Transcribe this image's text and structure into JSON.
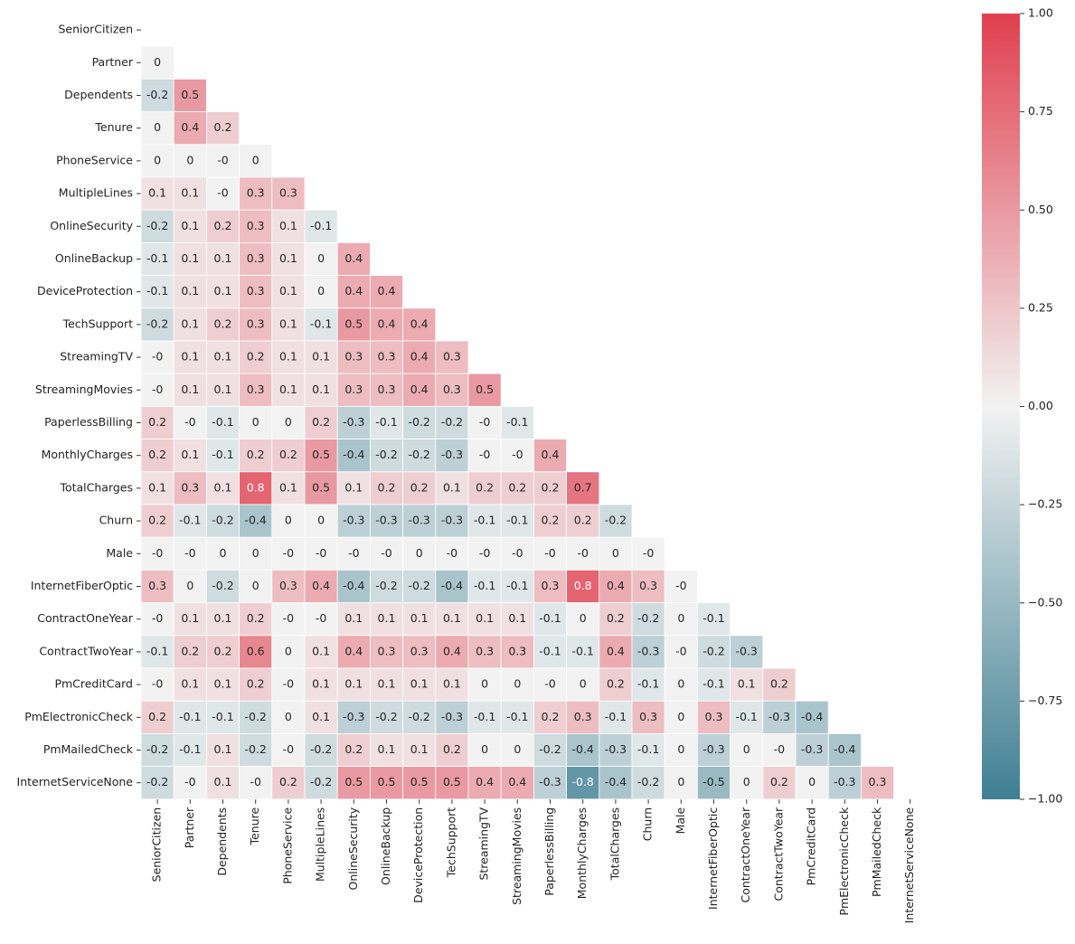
{
  "chart_data": {
    "type": "heatmap",
    "categories": [
      "SeniorCitizen",
      "Partner",
      "Dependents",
      "Tenure",
      "PhoneService",
      "MultipleLines",
      "OnlineSecurity",
      "OnlineBackup",
      "DeviceProtection",
      "TechSupport",
      "StreamingTV",
      "StreamingMovies",
      "PaperlessBilling",
      "MonthlyCharges",
      "TotalCharges",
      "Churn",
      "Male",
      "InternetFiberOptic",
      "ContractOneYear",
      "ContractTwoYear",
      "PmCreditCard",
      "PmElectronicCheck",
      "PmMailedCheck",
      "InternetServiceNone"
    ],
    "values": [
      [],
      [
        0
      ],
      [
        -0.2,
        0.5
      ],
      [
        0,
        0.4,
        0.2
      ],
      [
        0,
        0,
        0,
        0
      ],
      [
        0.1,
        0.1,
        0,
        0.3,
        0.3
      ],
      [
        -0.2,
        0.1,
        0.2,
        0.3,
        0.1,
        -0.1
      ],
      [
        -0.1,
        0.1,
        0.1,
        0.3,
        0.1,
        0,
        0.4
      ],
      [
        -0.1,
        0.1,
        0.1,
        0.3,
        0.1,
        0,
        0.4,
        0.4
      ],
      [
        -0.2,
        0.1,
        0.2,
        0.3,
        0.1,
        -0.1,
        0.5,
        0.4,
        0.4
      ],
      [
        0,
        0.1,
        0.1,
        0.2,
        0.1,
        0.1,
        0.3,
        0.3,
        0.4,
        0.3
      ],
      [
        0,
        0.1,
        0.1,
        0.3,
        0.1,
        0.1,
        0.3,
        0.3,
        0.4,
        0.3,
        0.5
      ],
      [
        0.2,
        0,
        -0.1,
        0,
        0,
        0.2,
        -0.3,
        -0.1,
        -0.2,
        -0.2,
        0,
        -0.1
      ],
      [
        0.2,
        0.1,
        -0.1,
        0.2,
        0.2,
        0.5,
        -0.4,
        -0.2,
        -0.2,
        -0.3,
        0,
        0,
        0.4
      ],
      [
        0.1,
        0.3,
        0.1,
        0.8,
        0.1,
        0.5,
        0.1,
        0.2,
        0.2,
        0.1,
        0.2,
        0.2,
        0.2,
        0.7
      ],
      [
        0.2,
        -0.1,
        -0.2,
        -0.4,
        0,
        0,
        -0.3,
        -0.3,
        -0.3,
        -0.3,
        -0.1,
        -0.1,
        0.2,
        0.2,
        -0.2
      ],
      [
        0,
        0,
        0,
        0,
        0,
        0,
        0,
        0,
        0,
        0,
        0,
        0,
        0,
        0,
        0,
        0
      ],
      [
        0.3,
        0,
        -0.2,
        0,
        0.3,
        0.4,
        -0.4,
        -0.2,
        -0.2,
        -0.4,
        -0.1,
        -0.1,
        0.3,
        0.8,
        0.4,
        0.3,
        0
      ],
      [
        0,
        0.1,
        0.1,
        0.2,
        0,
        0,
        0.1,
        0.1,
        0.1,
        0.1,
        0.1,
        0.1,
        -0.1,
        0,
        0.2,
        -0.2,
        0,
        -0.1
      ],
      [
        -0.1,
        0.2,
        0.2,
        0.6,
        0,
        0.1,
        0.4,
        0.3,
        0.3,
        0.4,
        0.3,
        0.3,
        -0.1,
        -0.1,
        0.4,
        -0.3,
        0,
        -0.2,
        -0.3
      ],
      [
        0,
        0.1,
        0.1,
        0.2,
        0,
        0.1,
        0.1,
        0.1,
        0.1,
        0.1,
        0,
        0,
        0,
        0,
        0.2,
        -0.1,
        0,
        -0.1,
        0.1,
        0.2
      ],
      [
        0.2,
        -0.1,
        -0.1,
        -0.2,
        0,
        0.1,
        -0.3,
        -0.2,
        -0.2,
        -0.3,
        -0.1,
        -0.1,
        0.2,
        0.3,
        -0.1,
        0.3,
        0,
        0.3,
        -0.1,
        -0.3,
        -0.4
      ],
      [
        -0.2,
        -0.1,
        0.1,
        -0.2,
        0,
        -0.2,
        0.2,
        0.1,
        0.1,
        0.2,
        0,
        0,
        -0.2,
        -0.4,
        -0.3,
        -0.1,
        0,
        -0.3,
        0,
        0,
        -0.3,
        -0.4
      ],
      [
        -0.2,
        0,
        0.1,
        0,
        0.2,
        -0.2,
        0.5,
        0.5,
        0.5,
        0.5,
        0.4,
        0.4,
        -0.3,
        -0.8,
        -0.4,
        -0.2,
        0,
        -0.5,
        0,
        0.2,
        0,
        -0.3,
        0.3
      ]
    ],
    "value_labels": [
      [],
      [
        "0"
      ],
      [
        "-0.2",
        "0.5"
      ],
      [
        "0",
        "0.4",
        "0.2"
      ],
      [
        "0",
        "0",
        "-0",
        "0"
      ],
      [
        "0.1",
        "0.1",
        "-0",
        "0.3",
        "0.3"
      ],
      [
        "-0.2",
        "0.1",
        "0.2",
        "0.3",
        "0.1",
        "-0.1"
      ],
      [
        "-0.1",
        "0.1",
        "0.1",
        "0.3",
        "0.1",
        "0",
        "0.4"
      ],
      [
        "-0.1",
        "0.1",
        "0.1",
        "0.3",
        "0.1",
        "0",
        "0.4",
        "0.4"
      ],
      [
        "-0.2",
        "0.1",
        "0.2",
        "0.3",
        "0.1",
        "-0.1",
        "0.5",
        "0.4",
        "0.4"
      ],
      [
        "-0",
        "0.1",
        "0.1",
        "0.2",
        "0.1",
        "0.1",
        "0.3",
        "0.3",
        "0.4",
        "0.3"
      ],
      [
        "-0",
        "0.1",
        "0.1",
        "0.3",
        "0.1",
        "0.1",
        "0.3",
        "0.3",
        "0.4",
        "0.3",
        "0.5"
      ],
      [
        "0.2",
        "-0",
        "-0.1",
        "0",
        "0",
        "0.2",
        "-0.3",
        "-0.1",
        "-0.2",
        "-0.2",
        "-0",
        "-0.1"
      ],
      [
        "0.2",
        "0.1",
        "-0.1",
        "0.2",
        "0.2",
        "0.5",
        "-0.4",
        "-0.2",
        "-0.2",
        "-0.3",
        "-0",
        "-0",
        "0.4"
      ],
      [
        "0.1",
        "0.3",
        "0.1",
        "0.8",
        "0.1",
        "0.5",
        "0.1",
        "0.2",
        "0.2",
        "0.1",
        "0.2",
        "0.2",
        "0.2",
        "0.7"
      ],
      [
        "0.2",
        "-0.1",
        "-0.2",
        "-0.4",
        "0",
        "0",
        "-0.3",
        "-0.3",
        "-0.3",
        "-0.3",
        "-0.1",
        "-0.1",
        "0.2",
        "0.2",
        "-0.2"
      ],
      [
        "-0",
        "-0",
        "0",
        "0",
        "-0",
        "-0",
        "-0",
        "-0",
        "0",
        "-0",
        "-0",
        "-0",
        "-0",
        "-0",
        "0",
        "-0"
      ],
      [
        "0.3",
        "0",
        "-0.2",
        "0",
        "0.3",
        "0.4",
        "-0.4",
        "-0.2",
        "-0.2",
        "-0.4",
        "-0.1",
        "-0.1",
        "0.3",
        "0.8",
        "0.4",
        "0.3",
        "-0"
      ],
      [
        "-0",
        "0.1",
        "0.1",
        "0.2",
        "-0",
        "-0",
        "0.1",
        "0.1",
        "0.1",
        "0.1",
        "0.1",
        "0.1",
        "-0.1",
        "0",
        "0.2",
        "-0.2",
        "0",
        "-0.1"
      ],
      [
        "-0.1",
        "0.2",
        "0.2",
        "0.6",
        "0",
        "0.1",
        "0.4",
        "0.3",
        "0.3",
        "0.4",
        "0.3",
        "0.3",
        "-0.1",
        "-0.1",
        "0.4",
        "-0.3",
        "-0",
        "-0.2",
        "-0.3"
      ],
      [
        "-0",
        "0.1",
        "0.1",
        "0.2",
        "-0",
        "0.1",
        "0.1",
        "0.1",
        "0.1",
        "0.1",
        "0",
        "0",
        "-0",
        "0",
        "0.2",
        "-0.1",
        "0",
        "-0.1",
        "0.1",
        "0.2"
      ],
      [
        "0.2",
        "-0.1",
        "-0.1",
        "-0.2",
        "0",
        "0.1",
        "-0.3",
        "-0.2",
        "-0.2",
        "-0.3",
        "-0.1",
        "-0.1",
        "0.2",
        "0.3",
        "-0.1",
        "0.3",
        "0",
        "0.3",
        "-0.1",
        "-0.3",
        "-0.4"
      ],
      [
        "-0.2",
        "-0.1",
        "0.1",
        "-0.2",
        "-0",
        "-0.2",
        "0.2",
        "0.1",
        "0.1",
        "0.2",
        "0",
        "0",
        "-0.2",
        "-0.4",
        "-0.3",
        "-0.1",
        "0",
        "-0.3",
        "0",
        "-0",
        "-0.3",
        "-0.4"
      ],
      [
        "-0.2",
        "-0",
        "0.1",
        "-0",
        "0.2",
        "-0.2",
        "0.5",
        "0.5",
        "0.5",
        "0.5",
        "0.4",
        "0.4",
        "-0.3",
        "-0.8",
        "-0.4",
        "-0.2",
        "0",
        "-0.5",
        "0",
        "0.2",
        "0",
        "-0.3",
        "0.3"
      ]
    ],
    "colors": [
      "#3f7f93",
      "#f2f2f2",
      "#e0404f"
    ],
    "clim": [
      -1,
      1
    ],
    "cticks": [
      {
        "value": -1,
        "label": "−1.00"
      },
      {
        "value": -0.75,
        "label": "−0.75"
      },
      {
        "value": -0.5,
        "label": "−0.50"
      },
      {
        "value": -0.25,
        "label": "−0.25"
      },
      {
        "value": 0,
        "label": "0.00"
      },
      {
        "value": 0.25,
        "label": "0.25"
      },
      {
        "value": 0.5,
        "label": "0.50"
      },
      {
        "value": 0.75,
        "label": "0.75"
      },
      {
        "value": 1,
        "label": "1.00"
      }
    ]
  }
}
